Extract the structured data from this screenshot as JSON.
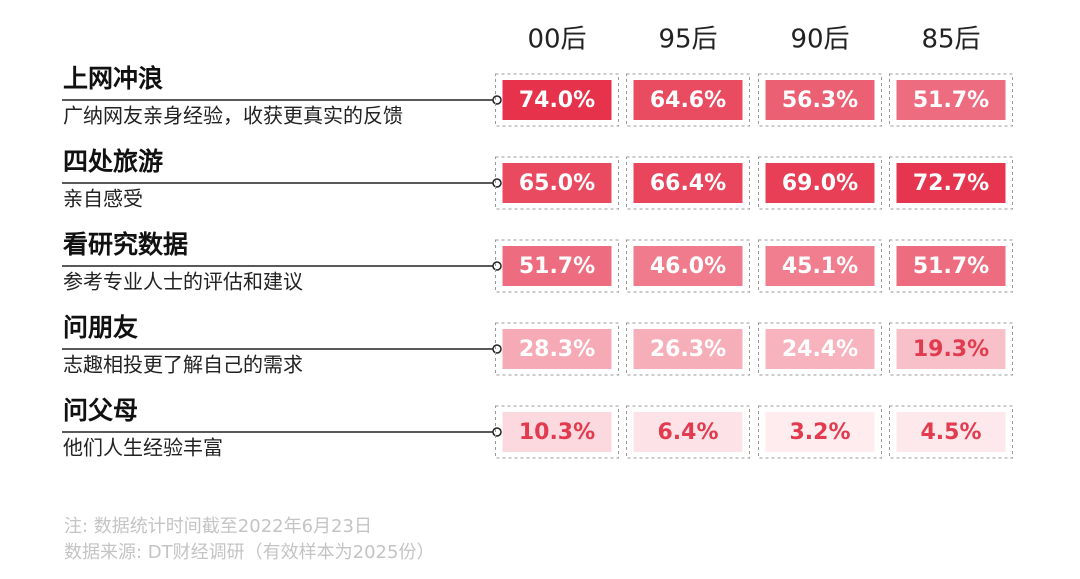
{
  "chart_data": {
    "type": "heatmap",
    "columns": [
      "00后",
      "95后",
      "90后",
      "85后"
    ],
    "rows": [
      {
        "title": "上网冲浪",
        "subtitle": "广纳网友亲身经验，收获更真实的反馈",
        "values": [
          74,
          64.6,
          56.3,
          51.7
        ],
        "value_labels": [
          "74.0%",
          "64.6%",
          "56.3%",
          "51.7%"
        ]
      },
      {
        "title": "四处旅游",
        "subtitle": "亲自感受",
        "values": [
          65,
          66.4,
          69,
          72.7
        ],
        "value_labels": [
          "65.0%",
          "66.4%",
          "69.0%",
          "72.7%"
        ]
      },
      {
        "title": "看研究数据",
        "subtitle": "参考专业人士的评估和建议",
        "values": [
          51.7,
          46,
          45.1,
          51.7
        ],
        "value_labels": [
          "51.7%",
          "46.0%",
          "45.1%",
          "51.7%"
        ]
      },
      {
        "title": "问朋友",
        "subtitle": "志趣相投更了解自己的需求",
        "values": [
          28.3,
          26.3,
          24.4,
          19.3
        ],
        "value_labels": [
          "28.3%",
          "26.3%",
          "24.4%",
          "19.3%"
        ]
      },
      {
        "title": "问父母",
        "subtitle": "他们人生经验丰富",
        "values": [
          10.3,
          6.4,
          3.2,
          4.5
        ],
        "value_labels": [
          "10.3%",
          "6.4%",
          "3.2%",
          "4.5%"
        ]
      }
    ],
    "color_range": [
      "#fff4f6",
      "#e6324b"
    ],
    "notes": [
      "注: 数据统计时间截至2022年6月23日",
      "数据来源: DT财经调研（有效样本为2025份）"
    ]
  }
}
